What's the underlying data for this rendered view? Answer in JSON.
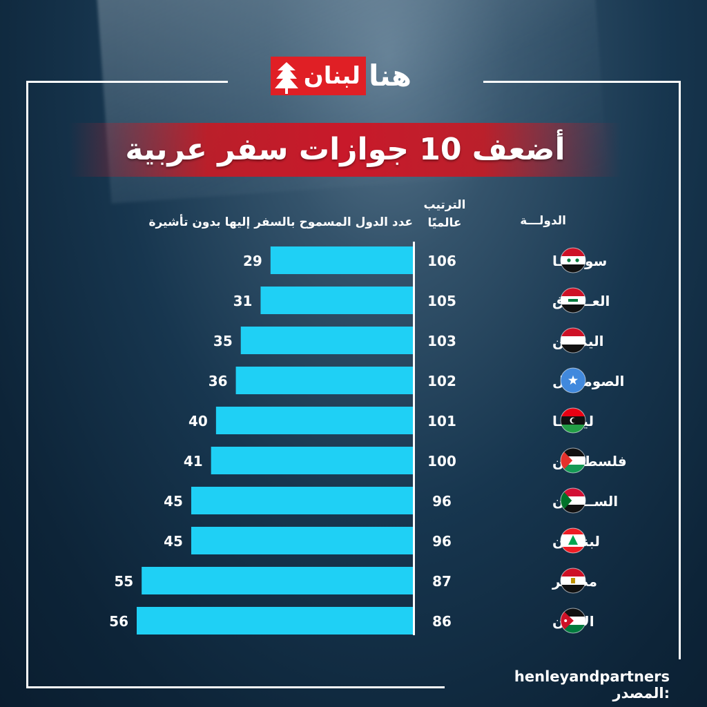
{
  "header": {
    "logo_red": "لبنان",
    "logo_white": "هنا",
    "title": "أضعف 10 جوازات سفر عربية"
  },
  "columns": {
    "country": "الدولـــة",
    "rank_line1": "الترتيب",
    "rank_line2": "عالميًا",
    "visa_free": "عدد الدول المسموح بالسفر إليها بدون تأشيرة"
  },
  "colors": {
    "bar": "#1fd0f5",
    "title_band": "#c8192a",
    "logo_red": "#e01f25"
  },
  "chart_data": {
    "type": "bar",
    "orientation": "horizontal",
    "categories": [
      "سوريـــا",
      "العـــراق",
      "اليمـــن",
      "الصومـــال",
      "ليبيـــا",
      "فلسطيـــن",
      "الســودان",
      "لبنـــان",
      "مصـــر",
      "الأردن"
    ],
    "flags": [
      "syria-flag",
      "iraq-flag",
      "yemen-flag",
      "somalia-flag",
      "libya-flag",
      "palestine-flag",
      "sudan-flag",
      "lebanon-flag",
      "egypt-flag",
      "jordan-flag"
    ],
    "ranks": [
      106,
      105,
      103,
      102,
      101,
      100,
      96,
      96,
      87,
      86
    ],
    "values": [
      29,
      31,
      35,
      36,
      40,
      41,
      45,
      45,
      55,
      56
    ],
    "xlim": [
      0,
      72
    ]
  },
  "source": {
    "label": "المصدر:",
    "value": "henleyandpartners"
  }
}
